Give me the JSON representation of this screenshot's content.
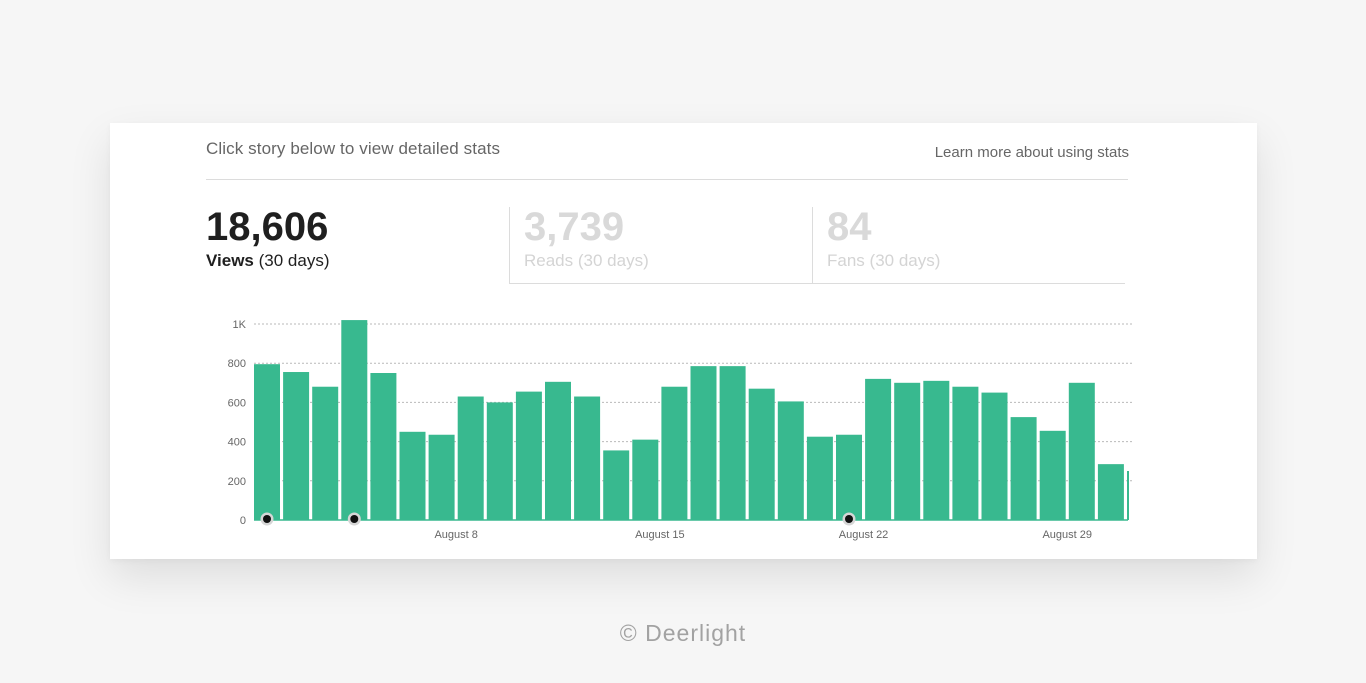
{
  "header": {
    "hint": "Click story below to view detailed stats",
    "learn_more": "Learn more about using stats"
  },
  "stats": {
    "views": {
      "value": "18,606",
      "label": "Views",
      "period": "(30 days)"
    },
    "reads": {
      "value": "3,739",
      "label": "Reads",
      "period": "(30 days)"
    },
    "fans": {
      "value": "84",
      "label": "Fans",
      "period": "(30 days)"
    }
  },
  "colors": {
    "bar": "#38b98f",
    "active_number": "#1f1f1f",
    "inactive_number": "#d9d9d9"
  },
  "footer": "© Deerlight",
  "chart_data": {
    "type": "bar",
    "ylim": [
      0,
      1000
    ],
    "yticks": [
      {
        "value": 0,
        "label": "0"
      },
      {
        "value": 200,
        "label": "200"
      },
      {
        "value": 400,
        "label": "400"
      },
      {
        "value": 600,
        "label": "600"
      },
      {
        "value": 800,
        "label": "800"
      },
      {
        "value": 1000,
        "label": "1K"
      }
    ],
    "xtick_labels": [
      {
        "index": 6,
        "label": "August 8"
      },
      {
        "index": 13,
        "label": "August 15"
      },
      {
        "index": 20,
        "label": "August 22"
      },
      {
        "index": 27,
        "label": "August 29"
      }
    ],
    "values": [
      795,
      755,
      680,
      1020,
      750,
      450,
      435,
      630,
      600,
      655,
      705,
      630,
      355,
      410,
      680,
      785,
      785,
      670,
      605,
      425,
      435,
      720,
      700,
      710,
      680,
      650,
      525,
      455,
      700,
      285
    ],
    "markers": [
      0,
      3,
      20
    ],
    "grid": true
  }
}
